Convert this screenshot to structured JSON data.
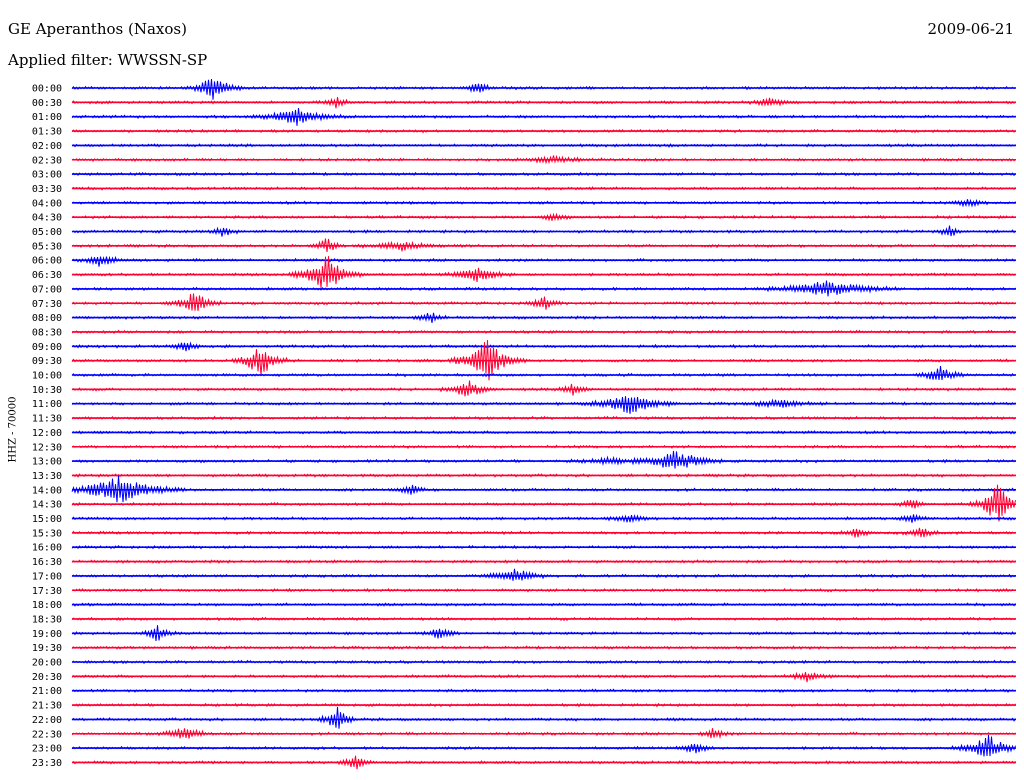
{
  "header": {
    "station": "GE Aperanthos (Naxos)",
    "date": "2009-06-21",
    "filter_text": "Applied filter: WWSSN-SP"
  },
  "chart_data": {
    "type": "line",
    "title": "GE Aperanthos (Naxos)",
    "subtitle": "Applied filter: WWSSN-SP",
    "date": "2009-06-21",
    "ylabel": "HHZ - 70000",
    "xlabel": "",
    "colors": [
      "#0000ff",
      "#ff0033"
    ],
    "rows": [
      "00:00",
      "00:30",
      "01:00",
      "01:30",
      "02:00",
      "02:30",
      "03:00",
      "03:30",
      "04:00",
      "04:30",
      "05:00",
      "05:30",
      "06:00",
      "06:30",
      "07:00",
      "07:30",
      "08:00",
      "08:30",
      "09:00",
      "09:30",
      "10:00",
      "10:30",
      "11:00",
      "11:30",
      "12:00",
      "12:30",
      "13:00",
      "13:30",
      "14:00",
      "14:30",
      "15:00",
      "15:30",
      "16:00",
      "16:30",
      "17:00",
      "17:30",
      "18:00",
      "18:30",
      "19:00",
      "19:30",
      "20:00",
      "20:30",
      "21:00",
      "21:30",
      "22:00",
      "22:30",
      "23:00",
      "23:30"
    ],
    "events": [
      {
        "row": 0,
        "pos": 0.15,
        "amp": 14,
        "dur": 0.03
      },
      {
        "row": 0,
        "pos": 0.43,
        "amp": 6,
        "dur": 0.02
      },
      {
        "row": 1,
        "pos": 0.28,
        "amp": 5,
        "dur": 0.02
      },
      {
        "row": 1,
        "pos": 0.74,
        "amp": 4,
        "dur": 0.03
      },
      {
        "row": 2,
        "pos": 0.24,
        "amp": 10,
        "dur": 0.05
      },
      {
        "row": 5,
        "pos": 0.51,
        "amp": 3,
        "dur": 0.06
      },
      {
        "row": 8,
        "pos": 0.95,
        "amp": 5,
        "dur": 0.02
      },
      {
        "row": 9,
        "pos": 0.51,
        "amp": 4,
        "dur": 0.02
      },
      {
        "row": 10,
        "pos": 0.16,
        "amp": 5,
        "dur": 0.02
      },
      {
        "row": 10,
        "pos": 0.93,
        "amp": 5,
        "dur": 0.02
      },
      {
        "row": 11,
        "pos": 0.27,
        "amp": 8,
        "dur": 0.02
      },
      {
        "row": 11,
        "pos": 0.35,
        "amp": 5,
        "dur": 0.05
      },
      {
        "row": 12,
        "pos": 0.03,
        "amp": 6,
        "dur": 0.03
      },
      {
        "row": 13,
        "pos": 0.27,
        "amp": 20,
        "dur": 0.04
      },
      {
        "row": 13,
        "pos": 0.43,
        "amp": 8,
        "dur": 0.04
      },
      {
        "row": 14,
        "pos": 0.8,
        "amp": 8,
        "dur": 0.08
      },
      {
        "row": 15,
        "pos": 0.13,
        "amp": 12,
        "dur": 0.03
      },
      {
        "row": 15,
        "pos": 0.5,
        "amp": 8,
        "dur": 0.02
      },
      {
        "row": 16,
        "pos": 0.38,
        "amp": 6,
        "dur": 0.02
      },
      {
        "row": 18,
        "pos": 0.12,
        "amp": 6,
        "dur": 0.02
      },
      {
        "row": 19,
        "pos": 0.2,
        "amp": 18,
        "dur": 0.03
      },
      {
        "row": 19,
        "pos": 0.44,
        "amp": 22,
        "dur": 0.04
      },
      {
        "row": 20,
        "pos": 0.92,
        "amp": 8,
        "dur": 0.03
      },
      {
        "row": 21,
        "pos": 0.42,
        "amp": 10,
        "dur": 0.03
      },
      {
        "row": 21,
        "pos": 0.53,
        "amp": 6,
        "dur": 0.02
      },
      {
        "row": 22,
        "pos": 0.59,
        "amp": 12,
        "dur": 0.05
      },
      {
        "row": 22,
        "pos": 0.75,
        "amp": 4,
        "dur": 0.05
      },
      {
        "row": 26,
        "pos": 0.64,
        "amp": 12,
        "dur": 0.05
      },
      {
        "row": 26,
        "pos": 0.57,
        "amp": 3,
        "dur": 0.05
      },
      {
        "row": 28,
        "pos": 0.05,
        "amp": 14,
        "dur": 0.07
      },
      {
        "row": 28,
        "pos": 0.36,
        "amp": 5,
        "dur": 0.02
      },
      {
        "row": 29,
        "pos": 0.89,
        "amp": 6,
        "dur": 0.02
      },
      {
        "row": 29,
        "pos": 0.98,
        "amp": 22,
        "dur": 0.03
      },
      {
        "row": 30,
        "pos": 0.59,
        "amp": 5,
        "dur": 0.03
      },
      {
        "row": 30,
        "pos": 0.89,
        "amp": 5,
        "dur": 0.02
      },
      {
        "row": 31,
        "pos": 0.83,
        "amp": 6,
        "dur": 0.02
      },
      {
        "row": 31,
        "pos": 0.9,
        "amp": 6,
        "dur": 0.02
      },
      {
        "row": 34,
        "pos": 0.47,
        "amp": 7,
        "dur": 0.04
      },
      {
        "row": 38,
        "pos": 0.09,
        "amp": 8,
        "dur": 0.02
      },
      {
        "row": 38,
        "pos": 0.39,
        "amp": 8,
        "dur": 0.02
      },
      {
        "row": 41,
        "pos": 0.78,
        "amp": 5,
        "dur": 0.03
      },
      {
        "row": 44,
        "pos": 0.28,
        "amp": 14,
        "dur": 0.02
      },
      {
        "row": 45,
        "pos": 0.12,
        "amp": 8,
        "dur": 0.03
      },
      {
        "row": 45,
        "pos": 0.68,
        "amp": 6,
        "dur": 0.02
      },
      {
        "row": 46,
        "pos": 0.66,
        "amp": 7,
        "dur": 0.02
      },
      {
        "row": 46,
        "pos": 0.97,
        "amp": 14,
        "dur": 0.04
      },
      {
        "row": 47,
        "pos": 0.3,
        "amp": 8,
        "dur": 0.02
      }
    ]
  }
}
